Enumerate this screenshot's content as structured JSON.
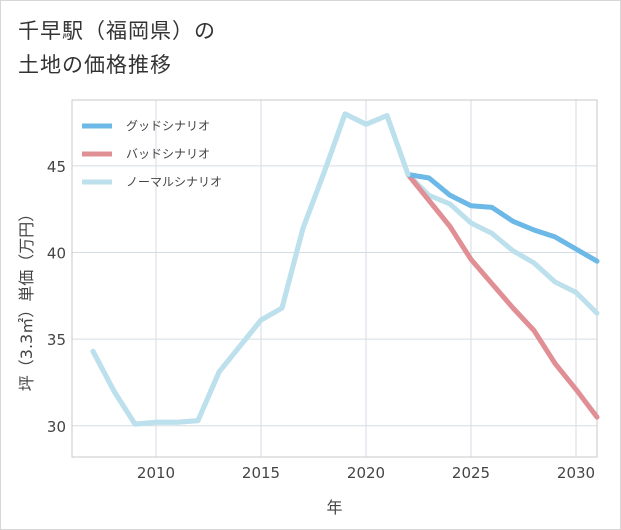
{
  "title_line1": "千早駅（福岡県）の",
  "title_line2": "土地の価格推移",
  "chart_data": {
    "type": "line",
    "xlabel": "年",
    "ylabel": "坪（3.3㎡）単価（万円）",
    "xlim": [
      2006,
      2031
    ],
    "ylim": [
      28.2,
      48.8
    ],
    "xticks": [
      2010,
      2015,
      2020,
      2025,
      2030
    ],
    "yticks": [
      30,
      35,
      40,
      45
    ],
    "grid": true,
    "legend_position": "top-left",
    "series": [
      {
        "name": "グッドシナリオ",
        "color": "#6cb8e6",
        "x": [
          2022,
          2023,
          2024,
          2025,
          2026,
          2027,
          2028,
          2029,
          2030,
          2031
        ],
        "y": [
          44.5,
          44.3,
          43.3,
          42.7,
          42.6,
          41.8,
          41.3,
          40.9,
          40.2,
          39.5
        ]
      },
      {
        "name": "バッドシナリオ",
        "color": "#e08f95",
        "x": [
          2022,
          2023,
          2024,
          2025,
          2026,
          2027,
          2028,
          2029,
          2030,
          2031
        ],
        "y": [
          44.5,
          43.0,
          41.5,
          39.6,
          38.2,
          36.8,
          35.5,
          33.6,
          32.1,
          30.5
        ]
      },
      {
        "name": "ノーマルシナリオ",
        "color": "#bde0ed",
        "x": [
          2007,
          2008,
          2009,
          2010,
          2011,
          2012,
          2013,
          2014,
          2015,
          2016,
          2017,
          2018,
          2019,
          2020,
          2021,
          2022,
          2023,
          2024,
          2025,
          2026,
          2027,
          2028,
          2029,
          2030,
          2031
        ],
        "y": [
          34.3,
          32.0,
          30.1,
          30.2,
          30.2,
          30.3,
          33.1,
          34.6,
          36.1,
          36.8,
          41.4,
          44.6,
          48.0,
          47.4,
          47.9,
          44.5,
          43.3,
          42.8,
          41.7,
          41.1,
          40.1,
          39.4,
          38.3,
          37.7,
          36.5
        ]
      }
    ]
  }
}
